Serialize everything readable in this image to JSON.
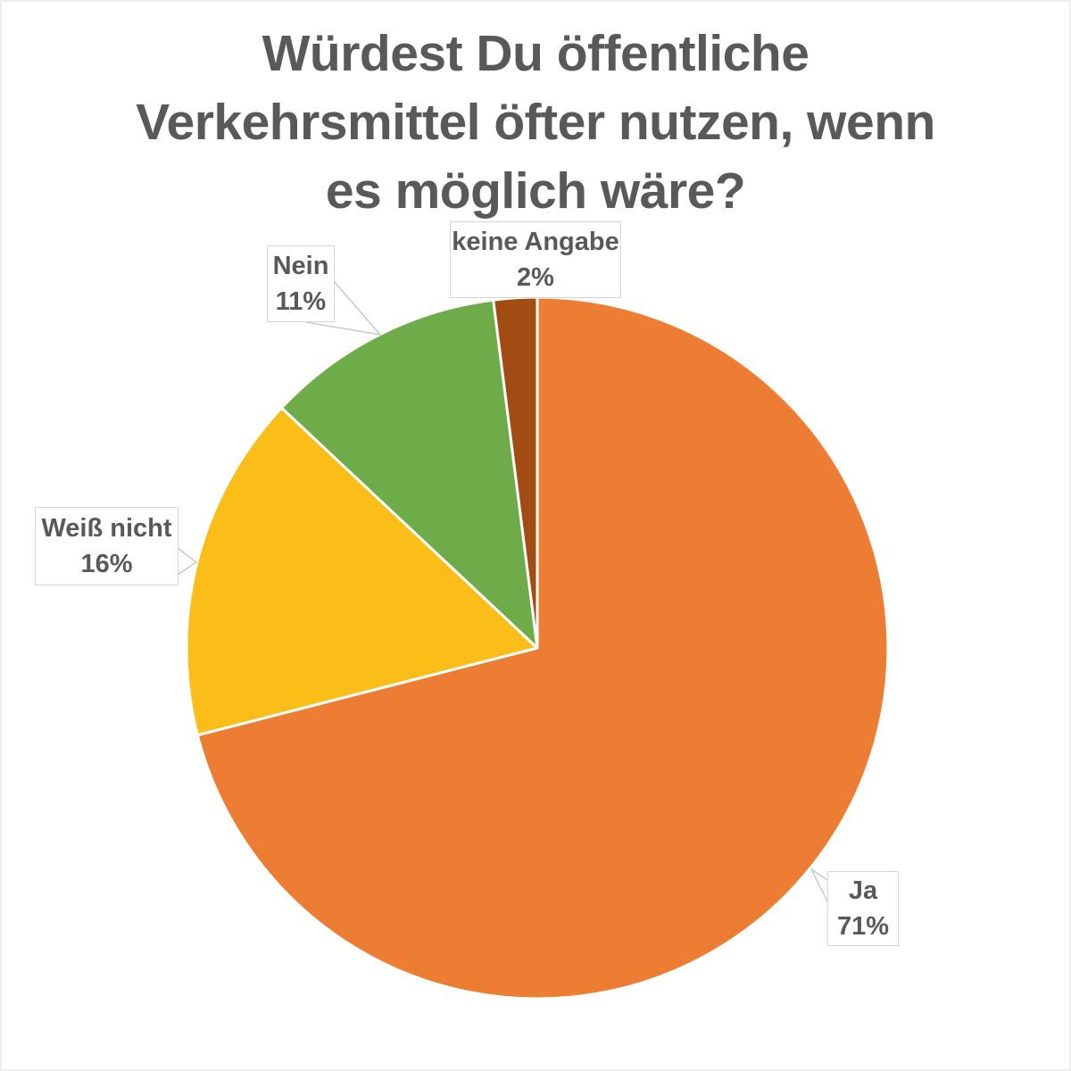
{
  "page": {
    "background": "#ffffff",
    "frame_border_color": "#ededed"
  },
  "chart_data": {
    "type": "pie",
    "title": "Würdest Du öffentliche Verkehrsmittel öfter nutzen, wenn es möglich wäre?",
    "title_lines": [
      "Würdest Du öffentliche",
      "Verkehrsmittel öfter nutzen, wenn",
      "es möglich wäre?"
    ],
    "categories": [
      "Ja",
      "Weiß nicht",
      "Nein",
      "keine Angabe"
    ],
    "values": [
      71,
      16,
      11,
      2
    ],
    "unit": "%",
    "colors": [
      "#EC7D32",
      "#FBBD17",
      "#6EAC4A",
      "#A24C14"
    ],
    "start_position": "12-oclock",
    "direction": "clockwise",
    "legend": "none",
    "grid": "off",
    "title_color": "#595959",
    "label_text_color": "#595959",
    "label_box_fill": "#ffffff",
    "label_box_border": "#d6d6d6",
    "leader_line_color": "#c9c9c9",
    "slice_border_color": "#ffffff",
    "labels": [
      {
        "category": "Ja",
        "text": "Ja",
        "value_text": "71%"
      },
      {
        "category": "Weiß nicht",
        "text": "Weiß nicht",
        "value_text": "16%"
      },
      {
        "category": "Nein",
        "text": "Nein",
        "value_text": "11%"
      },
      {
        "category": "keine Angabe",
        "text": "keine Angabe",
        "value_text": "2%"
      }
    ]
  }
}
